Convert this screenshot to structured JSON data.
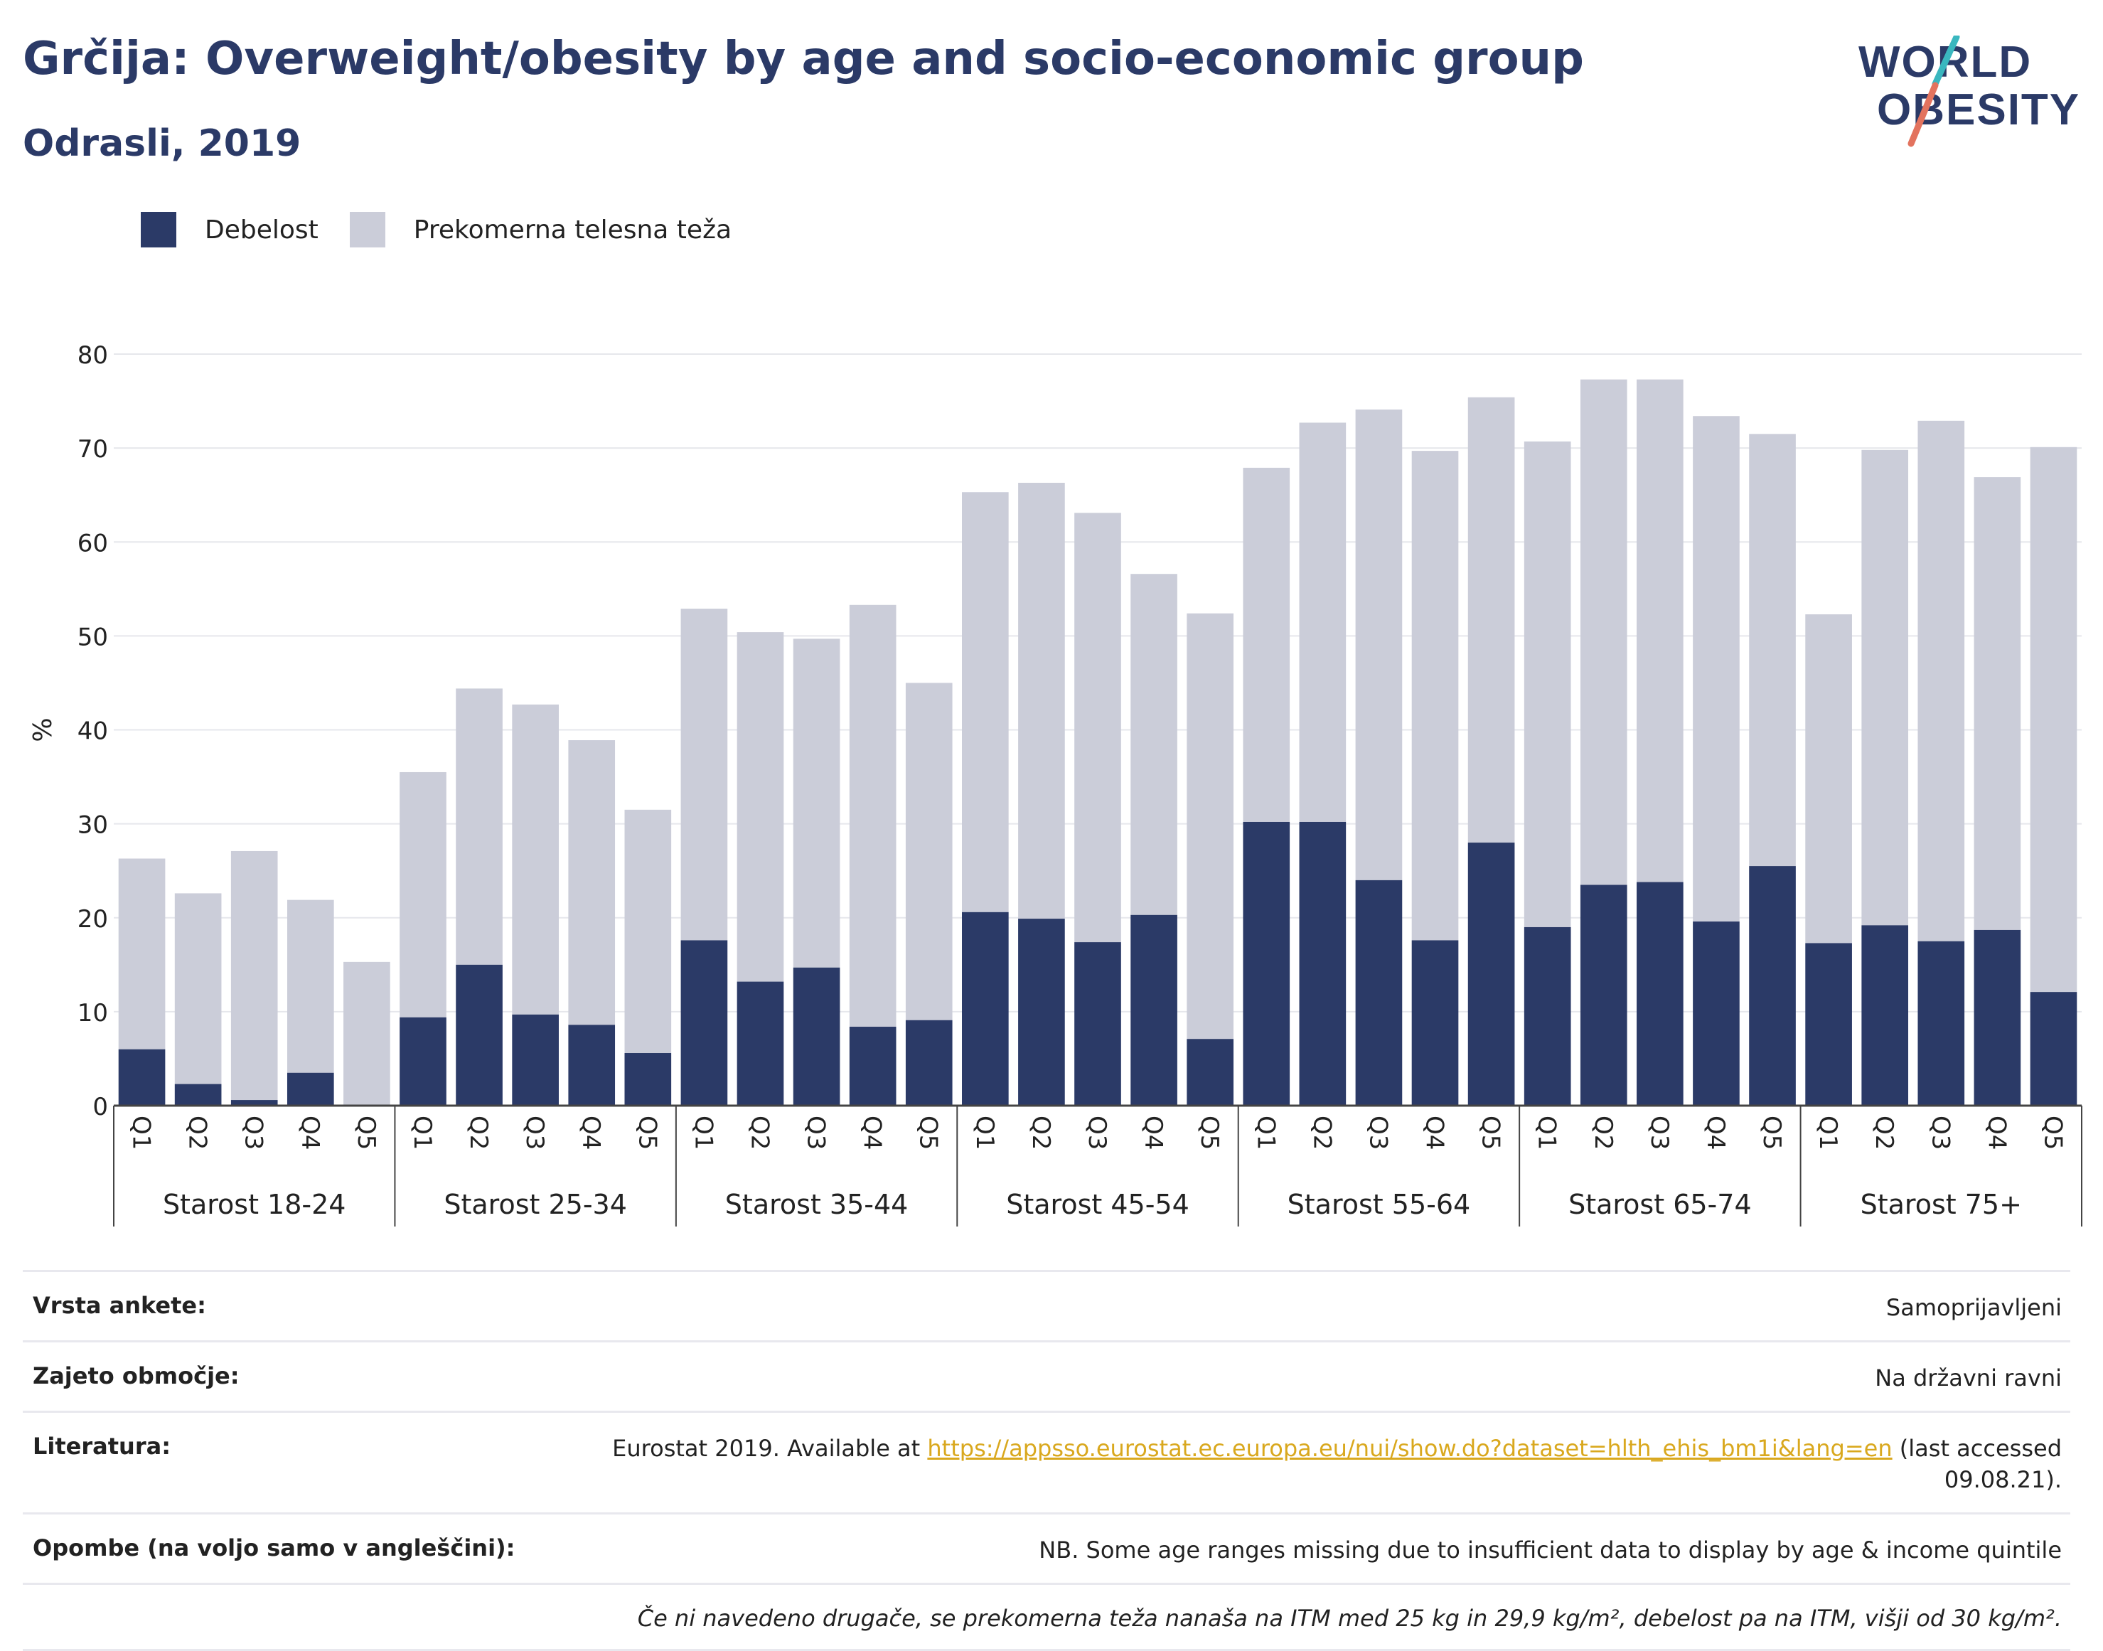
{
  "title": "Grčija: Overweight/obesity by age and socio-economic group",
  "subtitle": "Odrasli, 2019",
  "logo": {
    "line1": "WORLD",
    "line2": "OBESITY"
  },
  "colors": {
    "obesity": "#2b3a67",
    "overweight": "#cbcdd9",
    "title": "#2b3a67",
    "accent_teal": "#3ab7bf",
    "accent_red": "#e3735e"
  },
  "legend": [
    {
      "label": "Debelost",
      "color": "#2b3a67"
    },
    {
      "label": "Prekomerna telesna teža",
      "color": "#cbcdd9"
    }
  ],
  "chart_data": {
    "type": "bar",
    "stacked": true,
    "ylabel": "%",
    "ylim": [
      0,
      80
    ],
    "yticks": [
      0,
      10,
      20,
      30,
      40,
      50,
      60,
      70,
      80
    ],
    "grid": true,
    "groups": [
      {
        "label": "Starost 18-24",
        "categories": [
          "Q1",
          "Q2",
          "Q3",
          "Q4",
          "Q5"
        ],
        "obesity": [
          6.0,
          2.3,
          0.6,
          3.5,
          0.0
        ],
        "overweight": [
          20.3,
          20.3,
          26.5,
          18.4,
          15.3
        ]
      },
      {
        "label": "Starost 25-34",
        "categories": [
          "Q1",
          "Q2",
          "Q3",
          "Q4",
          "Q5"
        ],
        "obesity": [
          9.4,
          15.0,
          9.7,
          8.6,
          5.6
        ],
        "overweight": [
          26.1,
          29.4,
          33.0,
          30.3,
          25.9
        ]
      },
      {
        "label": "Starost 35-44",
        "categories": [
          "Q1",
          "Q2",
          "Q3",
          "Q4",
          "Q5"
        ],
        "obesity": [
          17.6,
          13.2,
          14.7,
          8.4,
          9.1
        ],
        "overweight": [
          35.3,
          37.2,
          35.0,
          44.9,
          35.9
        ]
      },
      {
        "label": "Starost 45-54",
        "categories": [
          "Q1",
          "Q2",
          "Q3",
          "Q4",
          "Q5"
        ],
        "obesity": [
          20.6,
          19.9,
          17.4,
          20.3,
          7.1
        ],
        "overweight": [
          44.7,
          46.4,
          45.7,
          36.3,
          45.3
        ]
      },
      {
        "label": "Starost 55-64",
        "categories": [
          "Q1",
          "Q2",
          "Q3",
          "Q4",
          "Q5"
        ],
        "obesity": [
          30.2,
          30.2,
          24.0,
          17.6,
          28.0
        ],
        "overweight": [
          37.7,
          42.5,
          50.1,
          52.1,
          47.4
        ]
      },
      {
        "label": "Starost 65-74",
        "categories": [
          "Q1",
          "Q2",
          "Q3",
          "Q4",
          "Q5"
        ],
        "obesity": [
          19.0,
          23.5,
          23.8,
          19.6,
          25.5
        ],
        "overweight": [
          51.7,
          53.8,
          53.5,
          53.8,
          46.0
        ]
      },
      {
        "label": "Starost 75+",
        "categories": [
          "Q1",
          "Q2",
          "Q3",
          "Q4",
          "Q5"
        ],
        "obesity": [
          17.3,
          19.2,
          17.5,
          18.7,
          12.1
        ],
        "overweight": [
          35.0,
          50.6,
          55.4,
          48.2,
          58.0
        ]
      }
    ]
  },
  "info": {
    "survey_label": "Vrsta ankete:",
    "survey_value": "Samoprijavljeni",
    "coverage_label": "Zajeto območje:",
    "coverage_value": "Na državni ravni",
    "lit_label": "Literatura:",
    "lit_prefix": "Eurostat 2019. Available at ",
    "lit_link": "https://appsso.eurostat.ec.europa.eu/nui/show.do?dataset=hlth_ehis_bm1i&lang=en",
    "lit_suffix": " (last accessed 09.08.21).",
    "notes_label": "Opombe (na voljo samo v angleščini):",
    "notes_value": "NB. Some age ranges missing due to insufficient data to display by age & income quintile",
    "footnote": "Če ni navedeno drugače, se prekomerna teža nanaša na ITM med 25 kg in 29,9 kg/m², debelost pa na ITM, višji od 30 kg/m²."
  }
}
